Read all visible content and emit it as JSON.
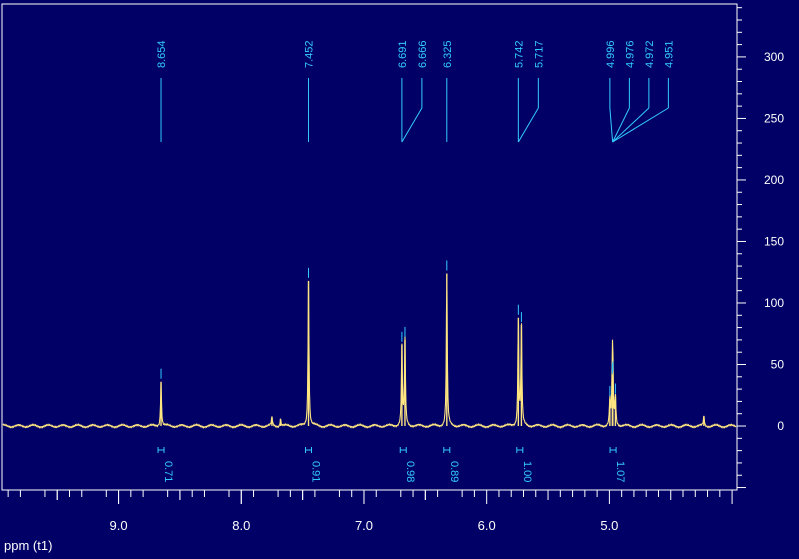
{
  "window": {
    "x_axis_label": "ppm (t1)"
  },
  "colors": {
    "background": "#000066",
    "frame": "#ffffff",
    "spectrum": "#ffe680",
    "annotation": "#33ccff"
  },
  "chart_data": {
    "type": "line",
    "title": "",
    "xlabel": "ppm (t1)",
    "ylabel": "",
    "x_reversed": true,
    "xlim": [
      9.95,
      3.96
    ],
    "ylim": [
      -52,
      343
    ],
    "x_ticks": [
      {
        "value": 9.0,
        "label": "9.0"
      },
      {
        "value": 8.0,
        "label": "8.0"
      },
      {
        "value": 7.0,
        "label": "7.0"
      },
      {
        "value": 6.0,
        "label": "6.0"
      },
      {
        "value": 5.0,
        "label": "5.0"
      }
    ],
    "y_ticks": [
      {
        "value": 0,
        "label": "0"
      },
      {
        "value": 50,
        "label": "50"
      },
      {
        "value": 100,
        "label": "100"
      },
      {
        "value": 150,
        "label": "150"
      },
      {
        "value": 200,
        "label": "200"
      },
      {
        "value": 250,
        "label": "250"
      },
      {
        "value": 300,
        "label": "300"
      }
    ],
    "peaks": [
      {
        "ppm": 8.654,
        "height": 36
      },
      {
        "ppm": 7.75,
        "height": 7
      },
      {
        "ppm": 7.68,
        "height": 6
      },
      {
        "ppm": 7.452,
        "height": 118
      },
      {
        "ppm": 6.691,
        "height": 66
      },
      {
        "ppm": 6.666,
        "height": 70
      },
      {
        "ppm": 6.325,
        "height": 124
      },
      {
        "ppm": 5.742,
        "height": 88
      },
      {
        "ppm": 5.717,
        "height": 82
      },
      {
        "ppm": 4.996,
        "height": 22
      },
      {
        "ppm": 4.976,
        "height": 40
      },
      {
        "ppm": 4.972,
        "height": 42
      },
      {
        "ppm": 4.951,
        "height": 24
      },
      {
        "ppm": 4.23,
        "height": 8
      }
    ],
    "peak_labels": [
      {
        "label": "8.654",
        "ppm": 8.654
      },
      {
        "label": "7.452",
        "ppm": 7.452
      },
      {
        "label": "6.691",
        "ppm": 6.691
      },
      {
        "label": "6.666",
        "ppm": 6.666
      },
      {
        "label": "6.325",
        "ppm": 6.325
      },
      {
        "label": "5.742",
        "ppm": 5.742
      },
      {
        "label": "5.717",
        "ppm": 5.717
      },
      {
        "label": "4.996",
        "ppm": 4.996
      },
      {
        "label": "4.976",
        "ppm": 4.976
      },
      {
        "label": "4.972",
        "ppm": 4.972
      },
      {
        "label": "4.951",
        "ppm": 4.951
      }
    ],
    "integrals": [
      {
        "label": "0.71",
        "ppm": 8.654
      },
      {
        "label": "0.91",
        "ppm": 7.452
      },
      {
        "label": "0.98",
        "ppm": 6.68
      },
      {
        "label": "0.89",
        "ppm": 6.325
      },
      {
        "label": "1.00",
        "ppm": 5.73
      },
      {
        "label": "1.07",
        "ppm": 4.97
      }
    ]
  }
}
